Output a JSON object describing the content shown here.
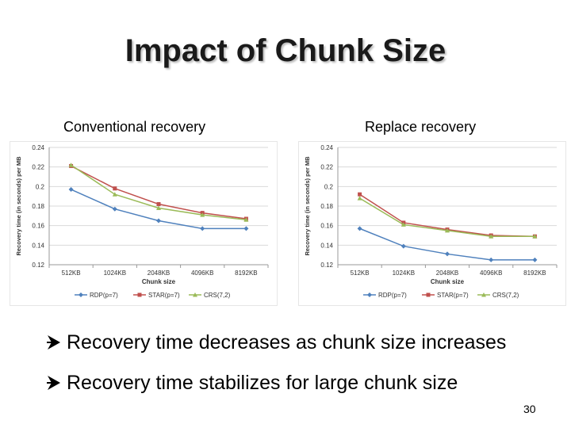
{
  "slide": {
    "title": "Impact of Chunk Size",
    "captions": [
      "Conventional recovery",
      "Replace recovery"
    ],
    "bullets": [
      "Recovery time decreases as chunk size increases",
      "Recovery time stabilizes for large chunk size"
    ],
    "page_number": "30",
    "bullet_icon": "arrow-bullet-icon"
  },
  "colors": {
    "rdp": "#4f81bd",
    "star": "#c0504d",
    "crs": "#9bbb59",
    "grid": "#d9d9d9",
    "axis_text": "#333333"
  },
  "chart_data": [
    {
      "type": "line",
      "xlabel": "Chunk size",
      "ylabel": "Recovery time (in seconds) per MB",
      "categories": [
        "512KB",
        "1024KB",
        "2048KB",
        "4096KB",
        "8192KB"
      ],
      "ylim": [
        0.12,
        0.24
      ],
      "yticks": [
        "0.24",
        "0.22",
        "0.2",
        "0.18",
        "0.16",
        "0.14",
        "0.12"
      ],
      "grid": true,
      "legend_position": "bottom",
      "series": [
        {
          "name": "RDP(p=7)",
          "values": [
            0.197,
            0.177,
            0.165,
            0.157,
            0.157
          ]
        },
        {
          "name": "STAR(p=7)",
          "values": [
            0.221,
            0.198,
            0.182,
            0.173,
            0.167
          ]
        },
        {
          "name": "CRS(7,2)",
          "values": [
            0.222,
            0.192,
            0.178,
            0.171,
            0.166
          ]
        }
      ]
    },
    {
      "type": "line",
      "xlabel": "Chunk size",
      "ylabel": "Recovery time (in seconds) per MB",
      "categories": [
        "512KB",
        "1024KB",
        "2048KB",
        "4096KB",
        "8192KB"
      ],
      "ylim": [
        0.12,
        0.24
      ],
      "yticks": [
        "0.24",
        "0.22",
        "0.2",
        "0.18",
        "0.16",
        "0.14",
        "0.12"
      ],
      "grid": true,
      "legend_position": "bottom",
      "series": [
        {
          "name": "RDP(p=7)",
          "values": [
            0.157,
            0.139,
            0.131,
            0.125,
            0.125
          ]
        },
        {
          "name": "STAR(p=7)",
          "values": [
            0.192,
            0.163,
            0.156,
            0.15,
            0.149
          ]
        },
        {
          "name": "CRS(7,2)",
          "values": [
            0.188,
            0.161,
            0.155,
            0.149,
            0.149
          ]
        }
      ]
    }
  ]
}
